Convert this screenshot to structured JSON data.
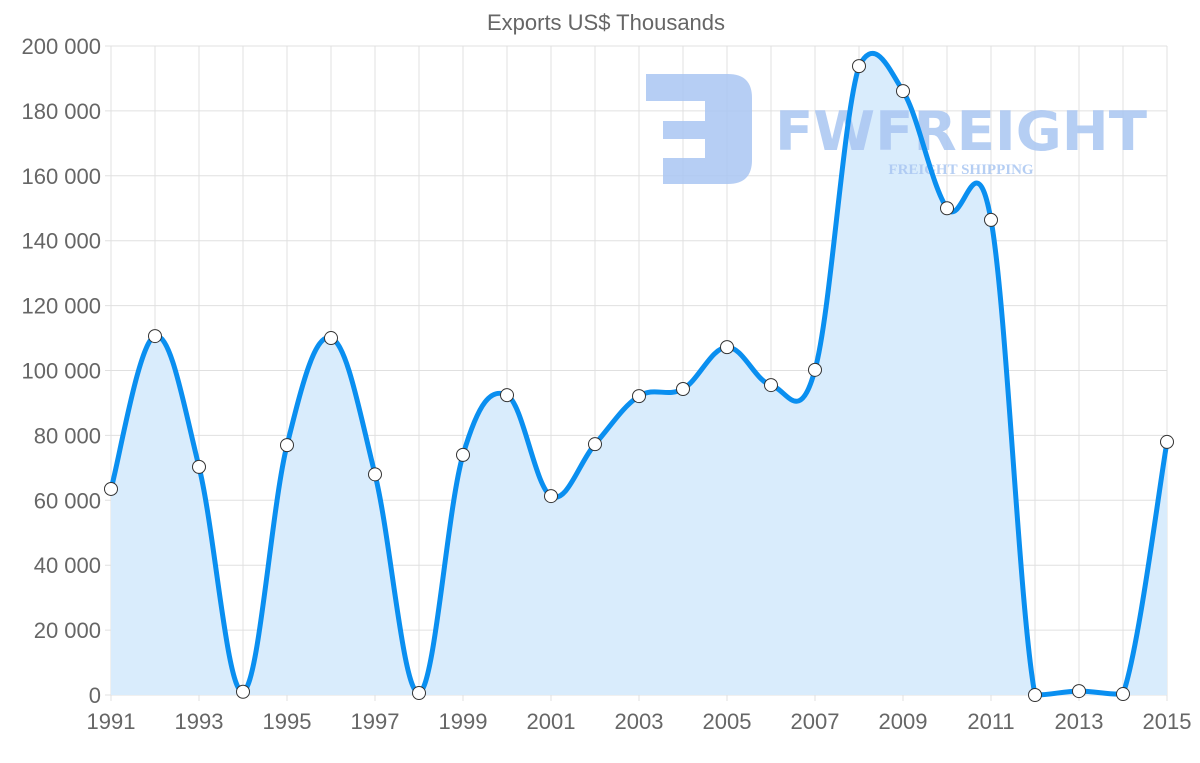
{
  "chart_data": {
    "type": "area",
    "title": "Exports US$ Thousands",
    "xlabel": "",
    "ylabel": "",
    "x": [
      1991,
      1992,
      1993,
      1994,
      1995,
      1996,
      1997,
      1998,
      1999,
      2000,
      2001,
      2002,
      2003,
      2004,
      2005,
      2006,
      2007,
      2008,
      2009,
      2010,
      2011,
      2012,
      2013,
      2014,
      2015
    ],
    "series": [
      {
        "name": "Exports US$ Thousands",
        "values": [
          63500,
          110600,
          70300,
          1000,
          77000,
          110000,
          68000,
          600,
          74000,
          92400,
          61300,
          77300,
          92100,
          94300,
          107200,
          95500,
          100200,
          193800,
          186100,
          150000,
          146400,
          0,
          1200,
          300,
          78000
        ]
      }
    ],
    "xlim": [
      1991,
      2015
    ],
    "ylim": [
      0,
      200000
    ],
    "xticks": [
      "1991",
      "1993",
      "1995",
      "1997",
      "1999",
      "2001",
      "2003",
      "2005",
      "2007",
      "2009",
      "2011",
      "2013",
      "2015"
    ],
    "yticks": [
      "0",
      "20 000",
      "40 000",
      "60 000",
      "80 000",
      "100 000",
      "120 000",
      "140 000",
      "160 000",
      "180 000",
      "200 000"
    ],
    "grid": true,
    "colors": {
      "line": "#0a8ff0",
      "fill": "#d9ecfc",
      "grid": "#e0e0e0"
    }
  },
  "watermark": {
    "brand": "FWFREIGHT",
    "tagline": "FREIGHT SHIPPING",
    "color": "#a9c6f2"
  }
}
